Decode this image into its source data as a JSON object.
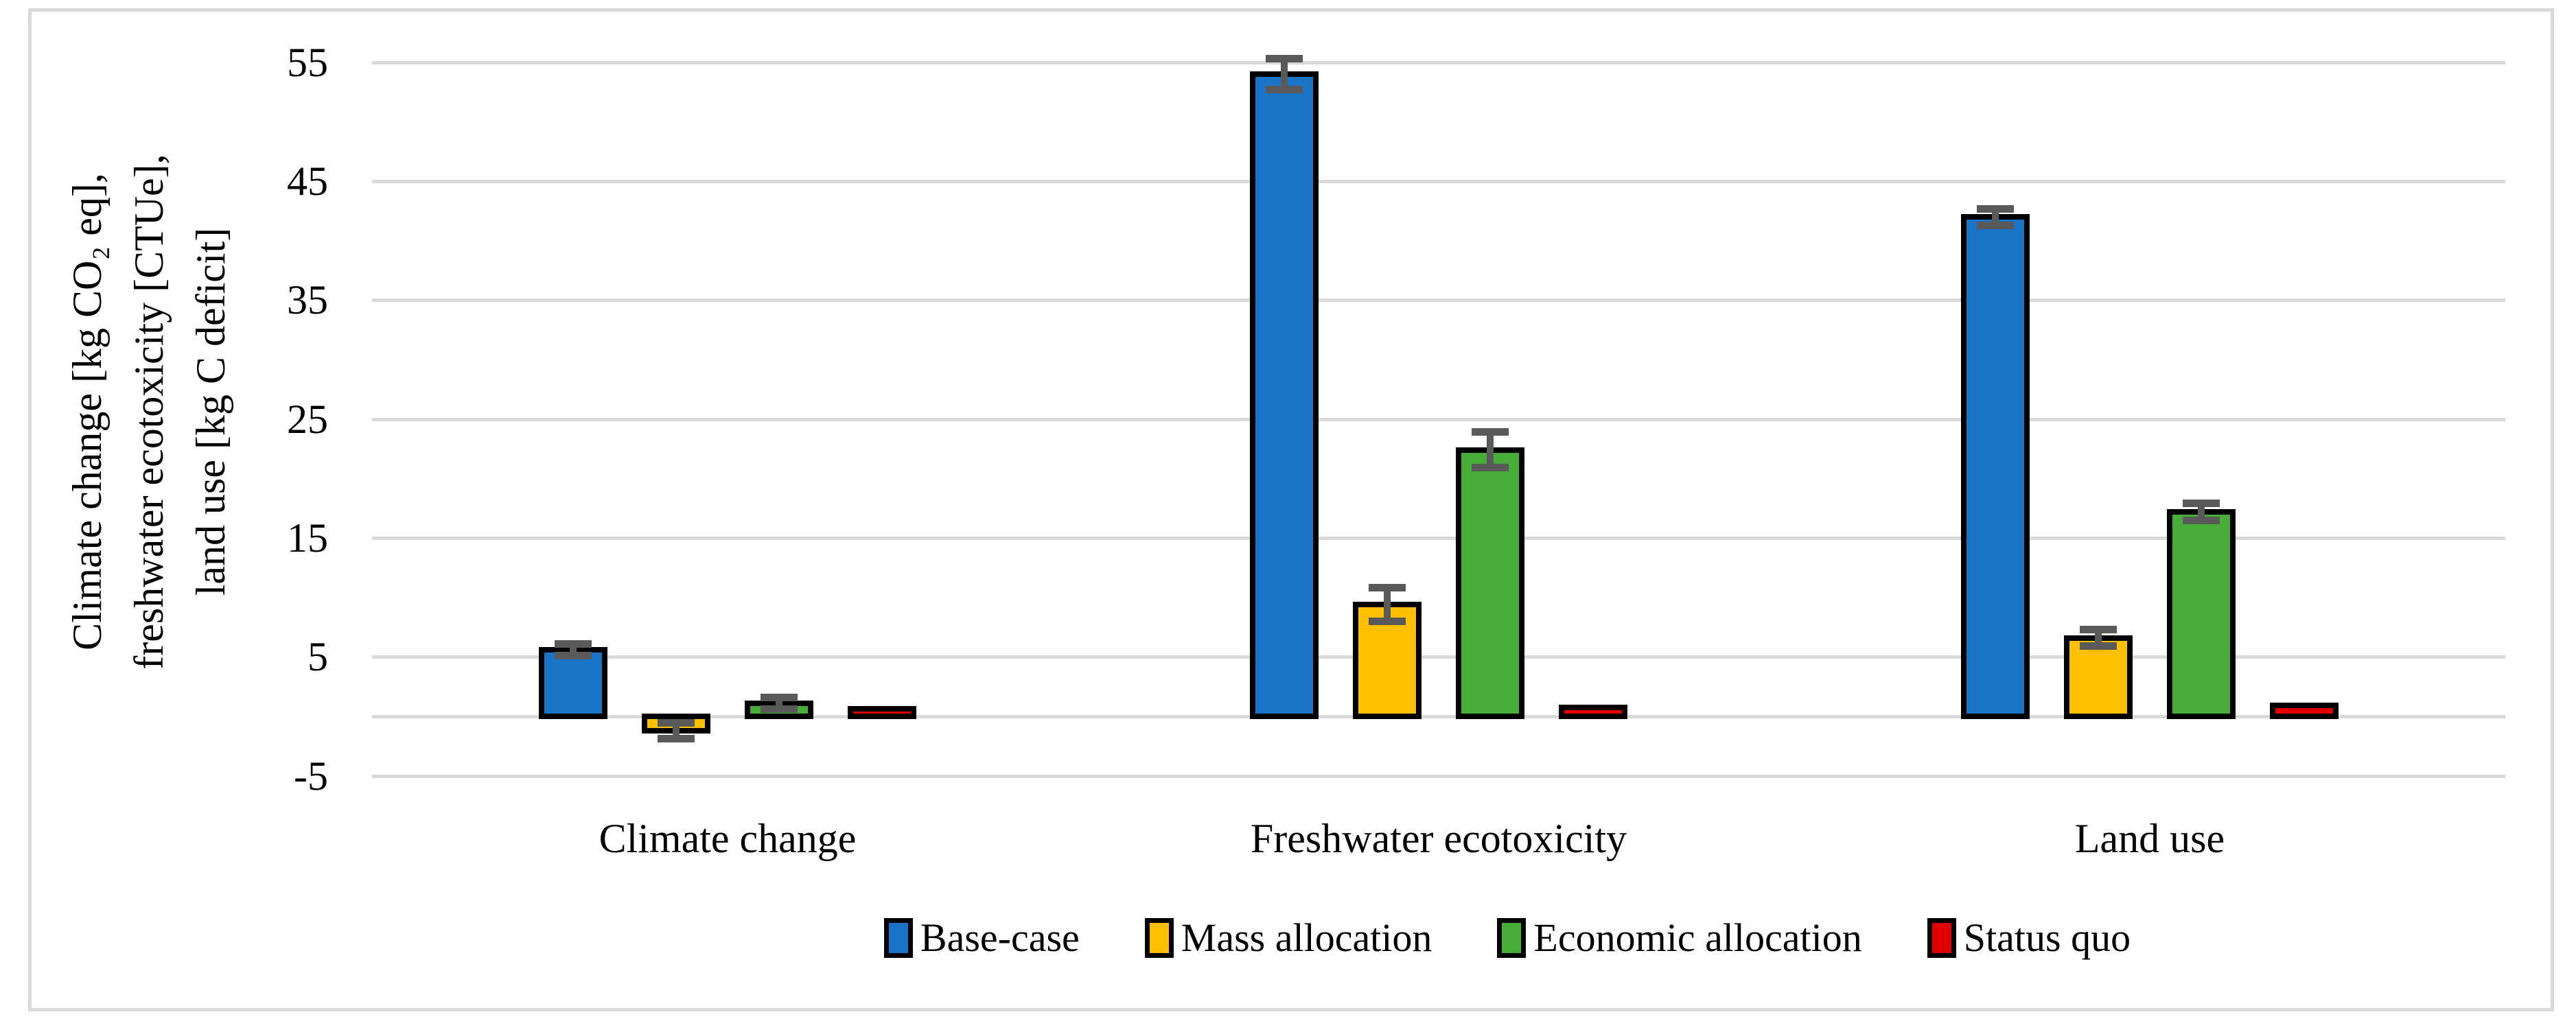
{
  "figure": {
    "background": "#ffffff",
    "frame_color": "#d9d9d9"
  },
  "chart_data": {
    "type": "bar",
    "title": "",
    "categories": [
      "Climate change",
      "Freshwater ecotoxicity",
      "Land use"
    ],
    "series": [
      {
        "name": "Base-case",
        "color": "#1a74c8",
        "values": [
          5.6,
          54.0,
          42.0
        ],
        "errors": [
          0.5,
          1.3,
          0.7
        ]
      },
      {
        "name": "Mass allocation",
        "color": "#ffc000",
        "values": [
          -1.2,
          9.4,
          6.6
        ],
        "errors": [
          0.65,
          1.4,
          0.7
        ]
      },
      {
        "name": "Economic allocation",
        "color": "#48ac39",
        "values": [
          1.1,
          22.4,
          17.2
        ],
        "errors": [
          0.5,
          1.5,
          0.7
        ]
      },
      {
        "name": "Status quo",
        "color": "#e00000",
        "values": [
          0.65,
          0.75,
          0.95
        ],
        "errors": [
          0,
          0,
          0
        ]
      }
    ],
    "ylabel_lines": [
      "Climate change [kg CO₂ eq],",
      "freshwater ecotoxicity [CTUe],",
      "land use [kg C deficit]"
    ],
    "xlabel": "",
    "yticks": [
      55,
      45,
      35,
      25,
      15,
      5,
      -5
    ],
    "gridline_values": [
      55,
      45,
      35,
      25,
      15,
      5,
      0,
      -5
    ],
    "ylim": [
      -5,
      56
    ],
    "grid": true,
    "legend_position": "bottom",
    "bar_border_color": "#000000",
    "gridline_color": "#d9d9d9",
    "error_bar_color": "#595959"
  }
}
